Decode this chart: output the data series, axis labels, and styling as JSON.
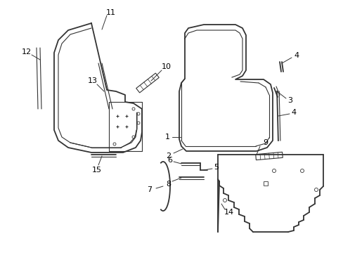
{
  "bg_color": "#ffffff",
  "line_color": "#333333",
  "text_color": "#000000",
  "fig_width": 4.89,
  "fig_height": 3.6,
  "dpi": 100
}
